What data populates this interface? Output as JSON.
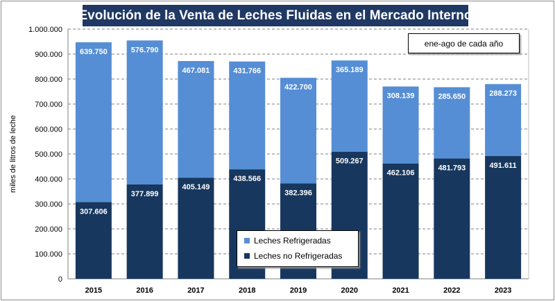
{
  "title": "Evolución de la Venta de Leches Fluidas en el Mercado Interno",
  "note": "ene-ago de cada año",
  "colors": {
    "refrigeradas": "#558ed5",
    "no_refrigeradas": "#17375e",
    "title_bg": "#1f3864"
  },
  "chart_data": {
    "type": "bar",
    "stacked": true,
    "categories": [
      "2015",
      "2016",
      "2017",
      "2018",
      "2019",
      "2020",
      "2021",
      "2022",
      "2023"
    ],
    "series": [
      {
        "name": "Leches no Refrigeradas",
        "values": [
          307606,
          377899,
          405149,
          438566,
          382396,
          509267,
          462106,
          481793,
          491611
        ],
        "labels": [
          "307.606",
          "377.899",
          "405.149",
          "438.566",
          "382.396",
          "509.267",
          "462.106",
          "481.793",
          "491.611"
        ]
      },
      {
        "name": "Leches Refrigeradas",
        "values": [
          639750,
          576790,
          467081,
          431766,
          422700,
          365189,
          308139,
          285650,
          288273
        ],
        "labels": [
          "639.750",
          "576.790",
          "467.081",
          "431.766",
          "422.700",
          "365.189",
          "308.139",
          "285.650",
          "288.273"
        ]
      }
    ],
    "title": "Evolución de la Venta de Leches Fluidas en el Mercado Interno",
    "xlabel": "",
    "ylabel": "miles de litros de leche",
    "ylim": [
      0,
      1000000
    ],
    "yticks": [
      "0",
      "100.000",
      "200.000",
      "300.000",
      "400.000",
      "500.000",
      "600.000",
      "700.000",
      "800.000",
      "900.000",
      "1.000.000"
    ],
    "grid": true,
    "legend": "bottom-center"
  }
}
